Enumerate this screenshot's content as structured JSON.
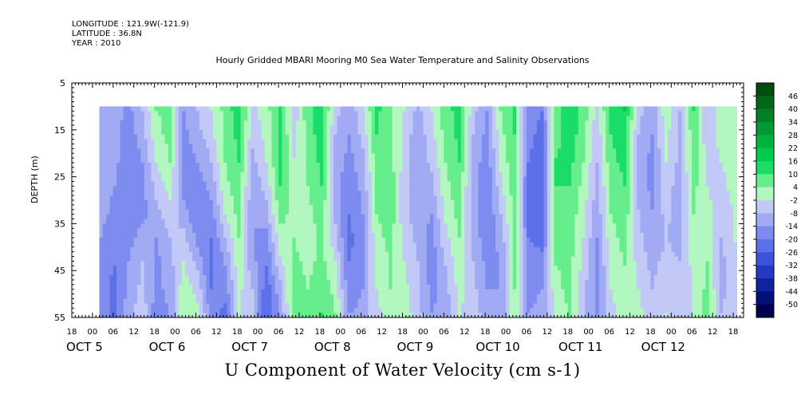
{
  "header": {
    "longitude": "LONGITUDE : 121.9W(-121.9)",
    "latitude": "LATITUDE : 36.8N",
    "year": "YEAR : 2010"
  },
  "chart_data": {
    "type": "heatmap",
    "title": "Hourly Gridded MBARI Mooring M0 Sea Water Temperature and Salinity Observations",
    "caption": "U Component of Water Velocity (cm s-1)",
    "ylabel": "DEPTH (m)",
    "ylim": [
      55,
      5
    ],
    "yticks": [
      5,
      15,
      25,
      35,
      45,
      55
    ],
    "x_hour_ticks": [
      "18",
      "00",
      "06",
      "12",
      "18",
      "00",
      "06",
      "12",
      "18",
      "00",
      "06",
      "12",
      "18",
      "00",
      "06",
      "12",
      "18",
      "00",
      "06",
      "12",
      "18",
      "00",
      "06",
      "12",
      "18",
      "00",
      "06",
      "12",
      "18",
      "00",
      "06",
      "12",
      "18"
    ],
    "x_day_labels": [
      "OCT  5",
      "OCT  6",
      "OCT  7",
      "OCT  8",
      "OCT  9",
      "OCT 10",
      "OCT 11",
      "OCT 12"
    ],
    "data_extent": {
      "start": "2010-10-05 02:00",
      "end": "2010-10-12 19:00",
      "depth_top": 10,
      "depth_bottom": 55
    },
    "colorbar": {
      "levels": [
        "46",
        "40",
        "34",
        "28",
        "22",
        "16",
        "10",
        "4",
        "-2",
        "-8",
        "-14",
        "-20",
        "-26",
        "-32",
        "-38",
        "-44",
        "-50"
      ],
      "colors": [
        "#004d10",
        "#00661a",
        "#008026",
        "#009933",
        "#00b33f",
        "#00cc4c",
        "#19dd66",
        "#66ee8c",
        "#b3f7c0",
        "#c2c9f7",
        "#a0abf3",
        "#7d8cee",
        "#5c70e8",
        "#3d53d9",
        "#2438c2",
        "#0f23a0",
        "#050f78",
        "#000050"
      ]
    },
    "columns": [
      {
        "t": 0,
        "u": [
          -14,
          -14,
          -13,
          -12,
          -12,
          -14,
          -16,
          -18,
          -18
        ]
      },
      {
        "t": 4,
        "u": [
          -10,
          -12,
          -12,
          -14,
          -16,
          -18,
          -20,
          -22,
          -22
        ]
      },
      {
        "t": 8,
        "u": [
          -16,
          -18,
          -20,
          -20,
          -18,
          -16,
          -14,
          -12,
          -10
        ]
      },
      {
        "t": 12,
        "u": [
          -8,
          -10,
          -14,
          -16,
          -16,
          -12,
          -8,
          -6,
          -4
        ]
      },
      {
        "t": 16,
        "u": [
          4,
          2,
          -2,
          -6,
          -10,
          -14,
          -16,
          -16,
          -18
        ]
      },
      {
        "t": 20,
        "u": [
          6,
          6,
          4,
          0,
          -4,
          -8,
          -10,
          -12,
          -14
        ]
      },
      {
        "t": 24,
        "u": [
          -14,
          -16,
          -18,
          -16,
          -12,
          -6,
          -2,
          2,
          2
        ]
      },
      {
        "t": 28,
        "u": [
          -8,
          -10,
          -14,
          -18,
          -20,
          -16,
          -10,
          -4,
          0
        ]
      },
      {
        "t": 32,
        "u": [
          -2,
          -4,
          -8,
          -12,
          -16,
          -20,
          -22,
          -20,
          -16
        ]
      },
      {
        "t": 36,
        "u": [
          6,
          6,
          4,
          2,
          -2,
          -8,
          -14,
          -18,
          -22
        ]
      },
      {
        "t": 40,
        "u": [
          14,
          12,
          10,
          8,
          6,
          4,
          2,
          0,
          -2
        ]
      },
      {
        "t": 44,
        "u": [
          -4,
          -6,
          -10,
          -12,
          -14,
          -14,
          -12,
          -8,
          -4
        ]
      },
      {
        "t": 48,
        "u": [
          2,
          0,
          -2,
          -6,
          -10,
          -16,
          -20,
          -24,
          -26
        ]
      },
      {
        "t": 52,
        "u": [
          10,
          12,
          12,
          10,
          6,
          2,
          -4,
          -10,
          -14
        ]
      },
      {
        "t": 56,
        "u": [
          -6,
          -4,
          -2,
          0,
          2,
          4,
          6,
          8,
          8
        ]
      },
      {
        "t": 60,
        "u": [
          8,
          6,
          4,
          4,
          2,
          0,
          2,
          4,
          6
        ]
      },
      {
        "t": 64,
        "u": [
          14,
          14,
          12,
          10,
          8,
          6,
          6,
          8,
          10
        ]
      },
      {
        "t": 68,
        "u": [
          -6,
          -8,
          -10,
          -12,
          -10,
          -6,
          -2,
          2,
          4
        ]
      },
      {
        "t": 72,
        "u": [
          -12,
          -14,
          -16,
          -18,
          -20,
          -22,
          -20,
          -18,
          -14
        ]
      },
      {
        "t": 76,
        "u": [
          -4,
          -6,
          -10,
          -12,
          -14,
          -16,
          -16,
          -14,
          -12
        ]
      },
      {
        "t": 80,
        "u": [
          12,
          10,
          8,
          6,
          4,
          2,
          0,
          -2,
          -4
        ]
      },
      {
        "t": 84,
        "u": [
          4,
          6,
          6,
          8,
          8,
          6,
          4,
          4,
          2
        ]
      },
      {
        "t": 88,
        "u": [
          -2,
          -4,
          -4,
          -6,
          -6,
          -4,
          -2,
          0,
          2
        ]
      },
      {
        "t": 92,
        "u": [
          -10,
          -12,
          -14,
          -14,
          -12,
          -10,
          -8,
          -6,
          -6
        ]
      },
      {
        "t": 96,
        "u": [
          -2,
          -4,
          -6,
          -10,
          -14,
          -16,
          -18,
          -16,
          -14
        ]
      },
      {
        "t": 100,
        "u": [
          8,
          6,
          4,
          2,
          0,
          -4,
          -8,
          -10,
          -12
        ]
      },
      {
        "t": 104,
        "u": [
          12,
          12,
          10,
          8,
          6,
          4,
          2,
          0,
          -2
        ]
      },
      {
        "t": 108,
        "u": [
          -6,
          -8,
          -10,
          -12,
          -12,
          -10,
          -8,
          -6,
          -4
        ]
      },
      {
        "t": 112,
        "u": [
          -14,
          -16,
          -18,
          -20,
          -20,
          -18,
          -16,
          -14,
          -12
        ]
      },
      {
        "t": 116,
        "u": [
          4,
          2,
          0,
          -4,
          -8,
          -12,
          -14,
          -14,
          -12
        ]
      },
      {
        "t": 120,
        "u": [
          10,
          10,
          8,
          8,
          6,
          6,
          4,
          4,
          2
        ]
      },
      {
        "t": 124,
        "u": [
          -16,
          -18,
          -20,
          -22,
          -22,
          -20,
          -18,
          -16,
          -14
        ]
      },
      {
        "t": 128,
        "u": [
          -20,
          -22,
          -24,
          -26,
          -24,
          -22,
          -18,
          -14,
          -12
        ]
      },
      {
        "t": 132,
        "u": [
          6,
          8,
          10,
          10,
          8,
          6,
          4,
          2,
          0
        ]
      },
      {
        "t": 136,
        "u": [
          14,
          14,
          12,
          10,
          8,
          8,
          6,
          6,
          4
        ]
      },
      {
        "t": 140,
        "u": [
          8,
          6,
          4,
          2,
          0,
          -2,
          -4,
          -6,
          -8
        ]
      },
      {
        "t": 144,
        "u": [
          -4,
          -6,
          -8,
          -10,
          -12,
          -14,
          -16,
          -16,
          -16
        ]
      },
      {
        "t": 148,
        "u": [
          12,
          10,
          8,
          6,
          4,
          2,
          0,
          -2,
          -4
        ]
      },
      {
        "t": 152,
        "u": [
          16,
          14,
          12,
          10,
          8,
          6,
          4,
          2,
          0
        ]
      },
      {
        "t": 156,
        "u": [
          -6,
          -8,
          -10,
          -10,
          -8,
          -6,
          -4,
          -2,
          0
        ]
      },
      {
        "t": 160,
        "u": [
          -12,
          -14,
          -16,
          -16,
          -14,
          -12,
          -10,
          -8,
          -6
        ]
      },
      {
        "t": 164,
        "u": [
          2,
          0,
          -2,
          -4,
          -6,
          -8,
          -6,
          -4,
          -2
        ]
      },
      {
        "t": 168,
        "u": [
          -8,
          -10,
          -10,
          -12,
          -12,
          -10,
          -8,
          -6,
          -4
        ]
      },
      {
        "t": 172,
        "u": [
          10,
          8,
          8,
          6,
          4,
          2,
          0,
          -2,
          -2
        ]
      },
      {
        "t": 176,
        "u": [
          -8,
          -6,
          -4,
          -2,
          0,
          2,
          4,
          6,
          6
        ]
      },
      {
        "t": 180,
        "u": [
          2,
          0,
          -2,
          -4,
          -6,
          -8,
          -10,
          -10,
          -8
        ]
      },
      {
        "t": 185,
        "u": [
          4,
          4,
          2,
          2,
          0,
          0,
          -2,
          -2,
          -4
        ]
      }
    ]
  }
}
